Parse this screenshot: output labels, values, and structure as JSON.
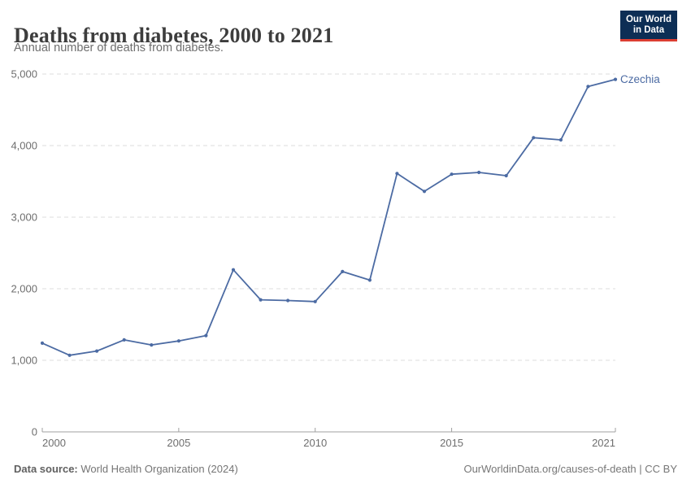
{
  "header": {
    "title": "Deaths from diabetes, 2000 to 2021",
    "subtitle": "Annual number of deaths from diabetes.",
    "logo": {
      "line1": "Our World",
      "line2": "in Data"
    }
  },
  "footer": {
    "source_label": "Data source:",
    "source_value": " World Health Organization (2024)",
    "credit": "OurWorldinData.org/causes-of-death | CC BY"
  },
  "chart_data": {
    "type": "line",
    "title": "Deaths from diabetes, 2000 to 2021",
    "subtitle": "Annual number of deaths from diabetes.",
    "entity_label": "Czechia",
    "x": [
      2000,
      2001,
      2002,
      2003,
      2004,
      2005,
      2006,
      2007,
      2008,
      2009,
      2010,
      2011,
      2012,
      2013,
      2014,
      2015,
      2016,
      2017,
      2018,
      2019,
      2020,
      2021
    ],
    "series": [
      {
        "name": "Czechia",
        "values": [
          1240,
          1070,
          1130,
          1285,
          1215,
          1270,
          1345,
          2265,
          1845,
          1835,
          1820,
          2240,
          2120,
          3610,
          3360,
          3600,
          3625,
          3580,
          4110,
          4080,
          4825,
          4925
        ]
      }
    ],
    "xlabel": "",
    "ylabel": "",
    "ylim": [
      0,
      5000
    ],
    "yticks": [
      0,
      1000,
      2000,
      3000,
      4000,
      5000
    ],
    "ytick_labels": [
      "0",
      "1,000",
      "2,000",
      "3,000",
      "4,000",
      "5,000"
    ],
    "xticks": [
      2000,
      2005,
      2010,
      2015,
      2021
    ],
    "xtick_labels": [
      "2000",
      "2005",
      "2010",
      "2015",
      "2021"
    ],
    "grid": "horizontal-dashed",
    "legend_position": "end-of-line-label",
    "colors": {
      "line": "#4c6ba3",
      "grid": "#dcdcdc",
      "axis": "#a0a0a0",
      "tick_text": "#6e6e6e",
      "entity_text": "#4c6ba3"
    }
  }
}
